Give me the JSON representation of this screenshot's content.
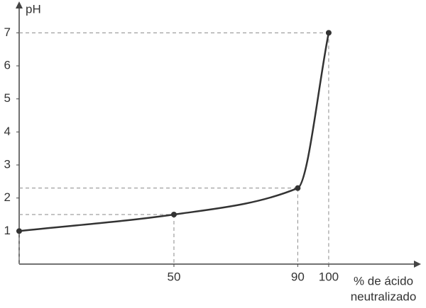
{
  "chart_data": {
    "type": "line",
    "y_label": "pH",
    "x_label": [
      "% de ácido",
      "neutralizado"
    ],
    "x": [
      0,
      50,
      90,
      100
    ],
    "series": [
      {
        "color": "#333333",
        "values": [
          1,
          1.5,
          2.3,
          7
        ]
      }
    ],
    "xlim": [
      0,
      128
    ],
    "xticks": [
      50,
      90,
      100
    ],
    "ylim": [
      0,
      7.8
    ],
    "yticks": [
      1,
      2,
      3,
      4,
      5,
      6,
      7
    ],
    "guide_lines": true,
    "guide_color": "#8a8a8a",
    "axis_color": "#444444"
  }
}
